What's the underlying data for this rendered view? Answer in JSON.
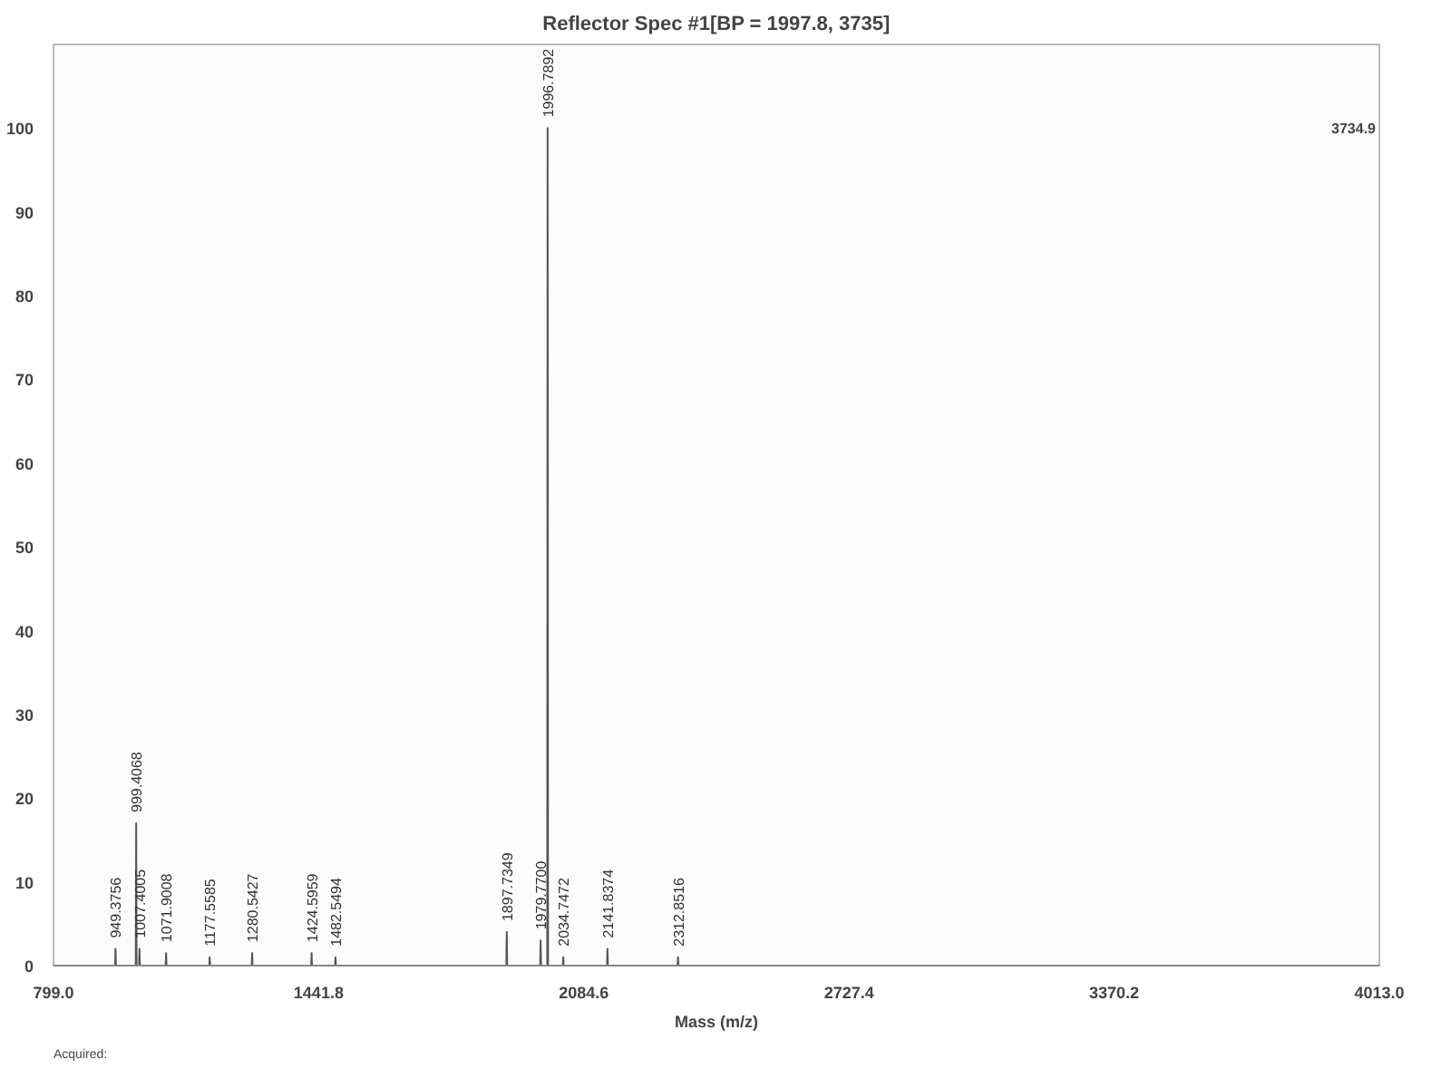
{
  "chart_data": {
    "type": "line",
    "title": "Reflector Spec #1[BP = 1997.8, 3735]",
    "xlabel": "Mass (m/z)",
    "x": [
      799.0,
      948.4,
      949.3756,
      950.4,
      998.4,
      999.4068,
      1000.4,
      1006.4,
      1007.4005,
      1008.4,
      1070.9,
      1071.9008,
      1072.9,
      1176.6,
      1177.5585,
      1178.6,
      1279.5,
      1280.5427,
      1281.5,
      1423.6,
      1424.5959,
      1425.6,
      1481.5,
      1482.5494,
      1483.5,
      1896.7,
      1897.7349,
      1898.7,
      1978.8,
      1979.77,
      1980.8,
      1995.8,
      1996.7892,
      1997.8,
      2033.7,
      2034.7472,
      2035.7,
      2140.8,
      2141.8374,
      2142.8,
      2311.9,
      2312.8516,
      2313.9,
      4013.0
    ],
    "series": [
      {
        "color": "#555555",
        "values": [
          0,
          0,
          2,
          0,
          0,
          17,
          0,
          0,
          2,
          0,
          0,
          1.5,
          0,
          0,
          1,
          0,
          0,
          1.5,
          0,
          0,
          1.5,
          0,
          0,
          1,
          0,
          0,
          4,
          0,
          0,
          3,
          0,
          0,
          100,
          0,
          0,
          1,
          0,
          0,
          2,
          0,
          0,
          1,
          0,
          0
        ]
      }
    ],
    "xlim": [
      799.0,
      4013.0
    ],
    "xticks": [
      {
        "value": 799.0,
        "label": "799.0"
      },
      1441.8,
      2084.6,
      2727.4,
      3370.2,
      {
        "value": 4013.0,
        "label": "4013.0"
      }
    ],
    "ylim": [
      0,
      110
    ],
    "yticks": [
      0,
      10,
      20,
      30,
      40,
      50,
      60,
      70,
      80,
      90,
      100
    ],
    "grid": false,
    "marker": "none",
    "line_style": "solid",
    "annotations": [
      {
        "text": "949.3756",
        "x": 949.3756,
        "y": 2
      },
      {
        "text": "999.4068",
        "x": 999.4068,
        "y": 17
      },
      {
        "text": "1007.4005",
        "x": 1007.4005,
        "y": 2
      },
      {
        "text": "1071.9008",
        "x": 1071.9008,
        "y": 1.5
      },
      {
        "text": "1177.5585",
        "x": 1177.5585,
        "y": 1
      },
      {
        "text": "1280.5427",
        "x": 1280.5427,
        "y": 1.5
      },
      {
        "text": "1424.5959",
        "x": 1424.5959,
        "y": 1.5
      },
      {
        "text": "1482.5494",
        "x": 1482.5494,
        "y": 1
      },
      {
        "text": "1897.7349",
        "x": 1897.7349,
        "y": 4
      },
      {
        "text": "1979.7700",
        "x": 1979.77,
        "y": 3
      },
      {
        "text": "1996.7892",
        "x": 1996.7892,
        "y": 100
      },
      {
        "text": "2034.7472",
        "x": 2034.7472,
        "y": 1
      },
      {
        "text": "2141.8374",
        "x": 2141.8374,
        "y": 2
      },
      {
        "text": "2312.8516",
        "x": 2312.8516,
        "y": 1
      },
      "3734.9",
      "Acquired:"
    ]
  }
}
